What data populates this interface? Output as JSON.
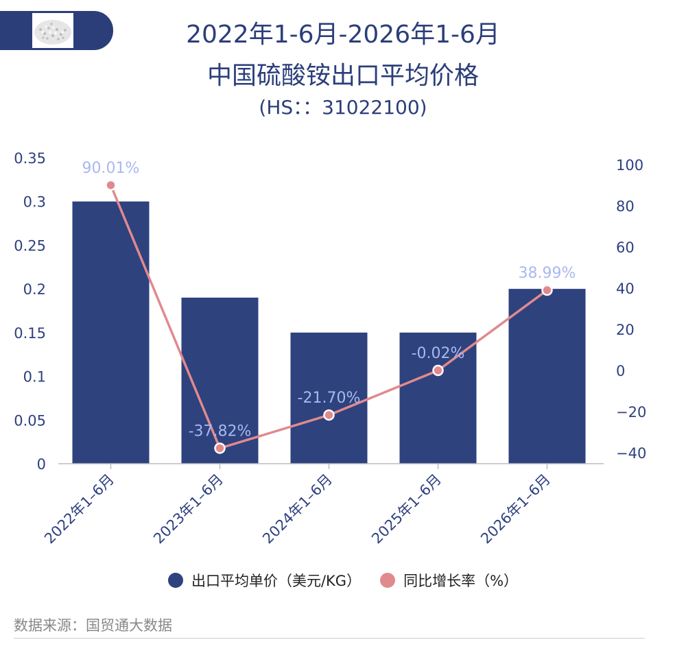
{
  "header": {
    "title_line1": "2022年1-6月-2026年1-6月",
    "title_line2": "中国硫酸铵出口平均价格",
    "title_line3": "(HS：：31022100)"
  },
  "legend": {
    "bar_label": "出口平均单价（美元/KG）",
    "line_label": "同比增长率（%）"
  },
  "source": "数据来源：国贸通大数据",
  "colors": {
    "bar": "#2e427e",
    "line": "#e08a8e",
    "point_label": "#a9b8f0",
    "axis_text": "#2e4080",
    "title": "#2b3e7a"
  },
  "chart_data": {
    "type": "bar",
    "categories": [
      "2022年1–6月",
      "2023年1–6月",
      "2024年1–6月",
      "2025年1–6月",
      "2026年1–6月"
    ],
    "series": [
      {
        "name": "出口平均单价（美元/KG）",
        "type": "bar",
        "axis": "left",
        "values": [
          0.3,
          0.19,
          0.15,
          0.15,
          0.2
        ]
      },
      {
        "name": "同比增长率（%）",
        "type": "line",
        "axis": "right",
        "values": [
          90.01,
          -37.82,
          -21.7,
          -0.02,
          38.99
        ],
        "labels": [
          "90.01%",
          "-37.82%",
          "-21.70%",
          "-0.02%",
          "38.99%"
        ]
      }
    ],
    "left_axis": {
      "ticks": [
        "0",
        "0.05",
        "0.1",
        "0.15",
        "0.2",
        "0.25",
        "0.3",
        "0.35"
      ],
      "range": [
        0,
        0.35
      ]
    },
    "right_axis": {
      "ticks": [
        "−40",
        "−20",
        "0",
        "20",
        "40",
        "60",
        "80",
        "100"
      ],
      "range": [
        -45,
        104
      ]
    },
    "legend_position": "bottom",
    "grid": false
  }
}
